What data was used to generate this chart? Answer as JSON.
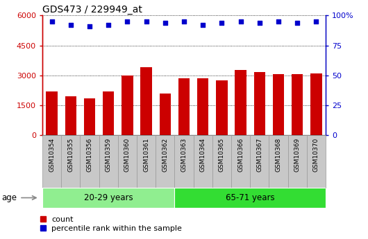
{
  "title": "GDS473 / 229949_at",
  "samples": [
    "GSM10354",
    "GSM10355",
    "GSM10356",
    "GSM10359",
    "GSM10360",
    "GSM10361",
    "GSM10362",
    "GSM10363",
    "GSM10364",
    "GSM10365",
    "GSM10366",
    "GSM10367",
    "GSM10368",
    "GSM10369",
    "GSM10370"
  ],
  "counts": [
    2200,
    1950,
    1850,
    2200,
    3000,
    3400,
    2100,
    2850,
    2850,
    2750,
    3250,
    3150,
    3050,
    3050,
    3100
  ],
  "percentile_ranks": [
    95,
    92,
    91,
    92,
    95,
    95,
    94,
    95,
    92,
    94,
    95,
    94,
    95,
    94,
    95
  ],
  "group1_label": "20-29 years",
  "group2_label": "65-71 years",
  "group1_count": 7,
  "group2_count": 8,
  "ylim_left": [
    0,
    6000
  ],
  "ylim_right": [
    0,
    100
  ],
  "yticks_left": [
    0,
    1500,
    3000,
    4500,
    6000
  ],
  "yticks_right": [
    0,
    25,
    50,
    75,
    100
  ],
  "bar_color": "#cc0000",
  "dot_color": "#0000cc",
  "group1_bg": "#90EE90",
  "group2_bg": "#33dd33",
  "tick_bg": "#c8c8c8",
  "tick_border": "#999999",
  "grid_color": "#000000",
  "age_label": "age",
  "legend_count_label": "count",
  "legend_pct_label": "percentile rank within the sample",
  "fig_width": 5.3,
  "fig_height": 3.45,
  "dpi": 100
}
